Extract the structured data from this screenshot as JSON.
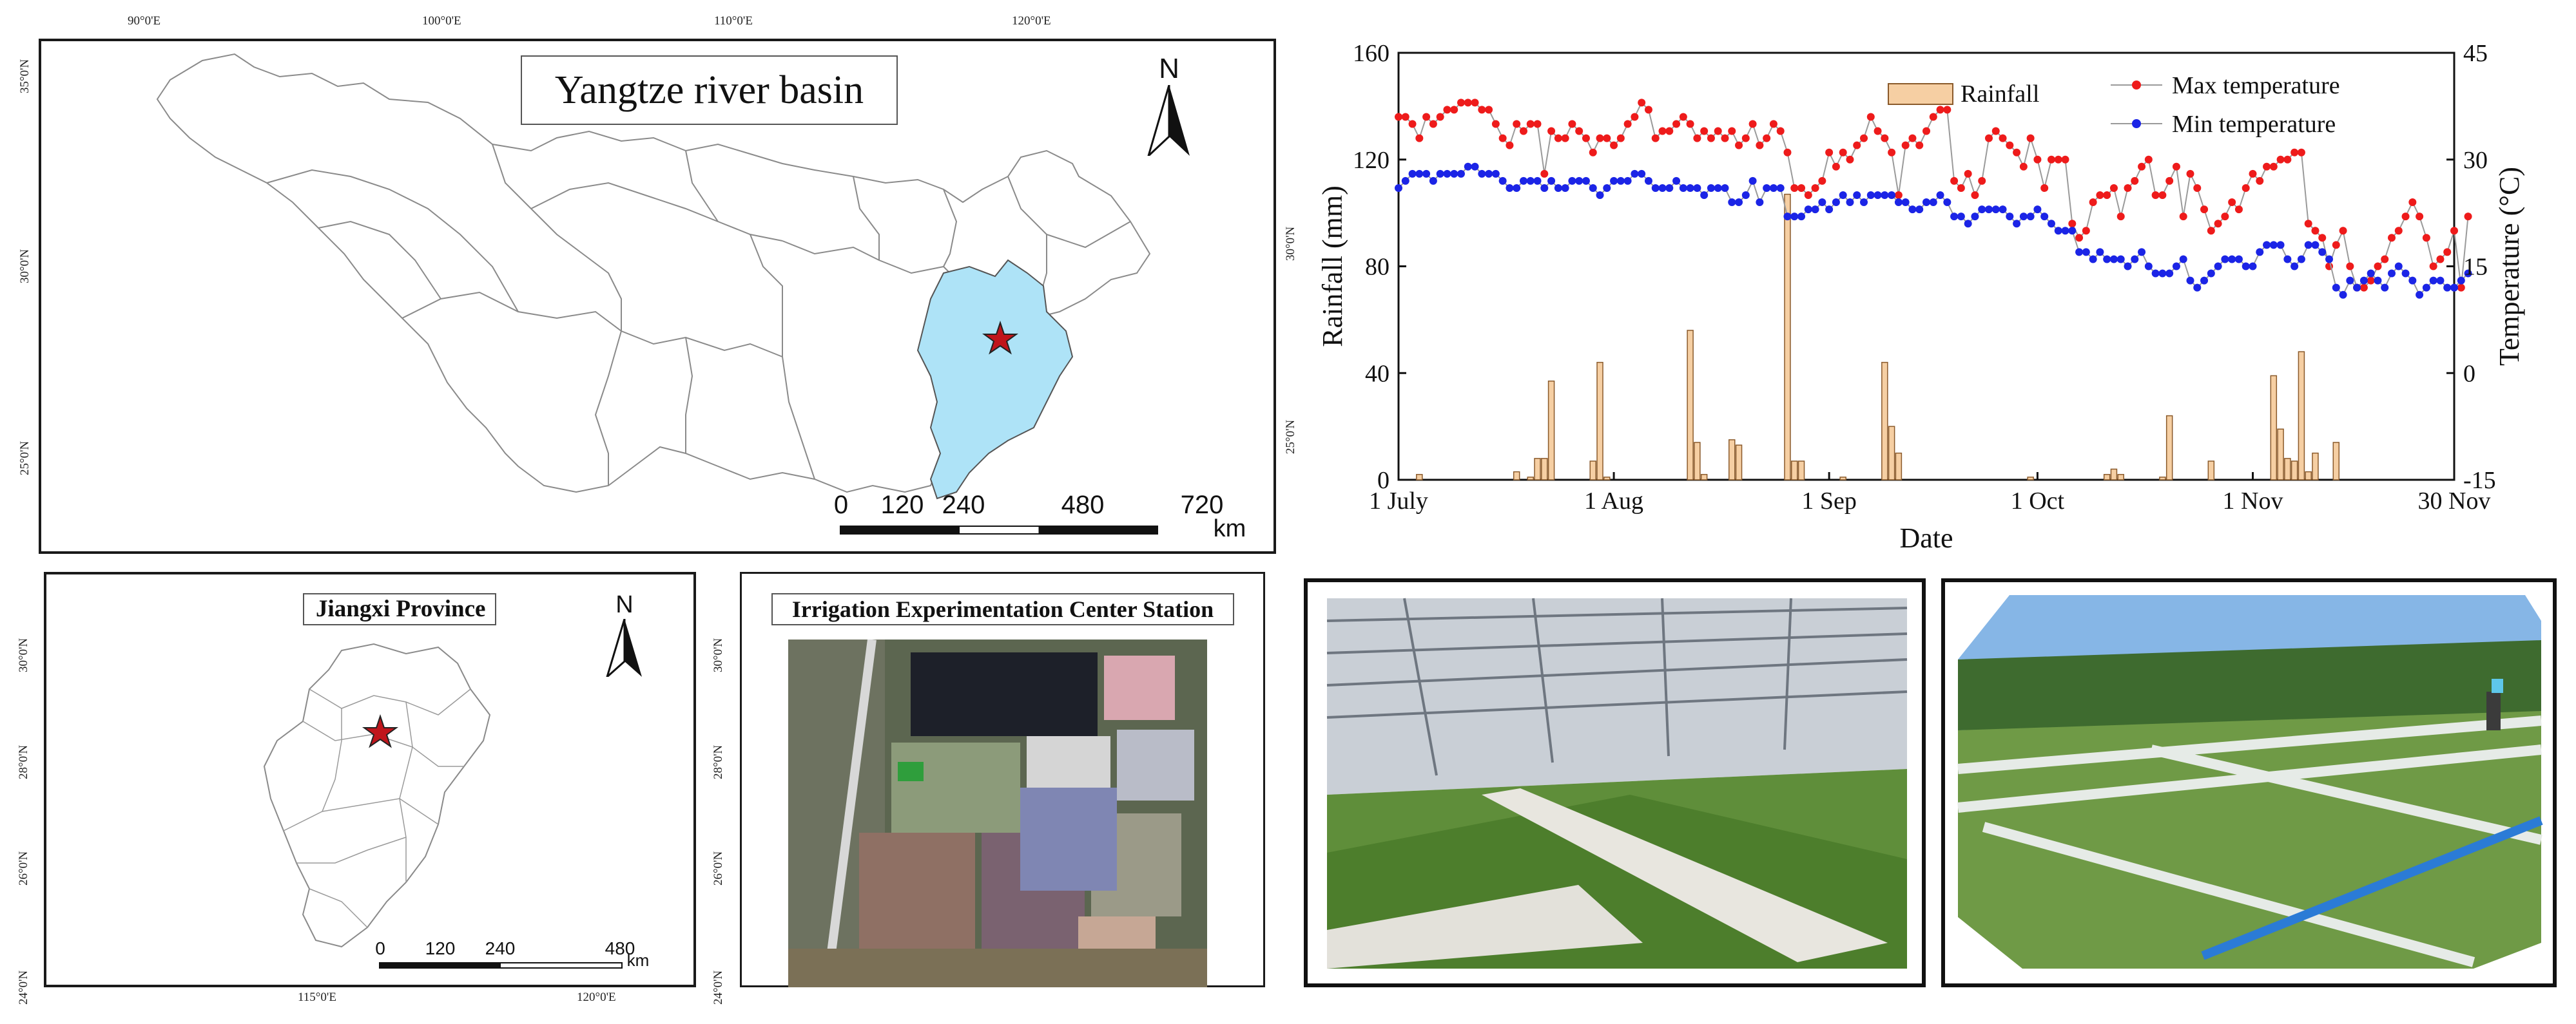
{
  "basin_map": {
    "title": "Yangtze river basin",
    "north": "N",
    "top_lon": [
      "90°0'E",
      "100°0'E",
      "110°0'E",
      "120°0'E"
    ],
    "left_lat": [
      "35°0'N",
      "30°0'N",
      "25°0'N"
    ],
    "right_lat": [
      "30°0'N",
      "25°0'N"
    ],
    "scale_values": [
      "0",
      "120",
      "240",
      "480",
      "720"
    ],
    "scale_unit": "km",
    "colors": {
      "highlight": "#aee3f7",
      "star": "#c0151b",
      "outline": "#8a8a8a"
    }
  },
  "jiangxi_map": {
    "title": "Jiangxi Province",
    "north": "N",
    "left_lat": [
      "30°0'N",
      "28°0'N",
      "26°0'N",
      "24°0'N"
    ],
    "bottom_lon": [
      "115°0'E",
      "120°0'E"
    ],
    "scale_values": [
      "0",
      "120",
      "240",
      "480"
    ],
    "scale_unit": "km"
  },
  "station_map": {
    "title": "Irrigation Experimentation Center Station",
    "left_lat": [
      "30°0'N",
      "28°0'N",
      "26°0'N",
      "24°0'N"
    ]
  },
  "chart_data": {
    "type": "bar+line",
    "xlabel": "Date",
    "ylabel_left": "Rainfall (mm)",
    "ylabel_right": "Temperature (°C)",
    "x_ticks": [
      "1 July",
      "1 Aug",
      "1 Sep",
      "1 Oct",
      "1 Nov",
      "30 Nov"
    ],
    "x_tick_days": [
      0,
      31,
      62,
      92,
      123,
      152
    ],
    "y_left_ticks": [
      "0",
      "40",
      "80",
      "120",
      "160"
    ],
    "y_right_ticks": [
      "-15",
      "0",
      "15",
      "30",
      "45"
    ],
    "y_left_range": [
      0,
      160
    ],
    "y_right_range": [
      -15,
      45
    ],
    "x_range_days": [
      0,
      152
    ],
    "legend": [
      "Rainfall",
      "Max temperature",
      "Min temperature"
    ],
    "colors": {
      "rainfall_fill": "#f6cfa3",
      "rainfall_edge": "#8a5a2b",
      "max": "#ee1b1b",
      "min": "#1b24e6",
      "line": "#9a9a9a"
    },
    "rainfall": [
      {
        "day": 3,
        "mm": 2
      },
      {
        "day": 17,
        "mm": 3
      },
      {
        "day": 19,
        "mm": 1
      },
      {
        "day": 20,
        "mm": 8
      },
      {
        "day": 21,
        "mm": 8
      },
      {
        "day": 22,
        "mm": 37
      },
      {
        "day": 28,
        "mm": 7
      },
      {
        "day": 29,
        "mm": 44
      },
      {
        "day": 30,
        "mm": 1
      },
      {
        "day": 42,
        "mm": 56
      },
      {
        "day": 43,
        "mm": 14
      },
      {
        "day": 44,
        "mm": 2
      },
      {
        "day": 48,
        "mm": 15
      },
      {
        "day": 49,
        "mm": 13
      },
      {
        "day": 56,
        "mm": 107
      },
      {
        "day": 57,
        "mm": 7
      },
      {
        "day": 58,
        "mm": 7
      },
      {
        "day": 64,
        "mm": 1
      },
      {
        "day": 70,
        "mm": 44
      },
      {
        "day": 71,
        "mm": 20
      },
      {
        "day": 72,
        "mm": 10
      },
      {
        "day": 91,
        "mm": 1
      },
      {
        "day": 102,
        "mm": 2
      },
      {
        "day": 103,
        "mm": 4
      },
      {
        "day": 104,
        "mm": 2
      },
      {
        "day": 110,
        "mm": 1
      },
      {
        "day": 111,
        "mm": 24
      },
      {
        "day": 117,
        "mm": 7
      },
      {
        "day": 126,
        "mm": 39
      },
      {
        "day": 127,
        "mm": 19
      },
      {
        "day": 128,
        "mm": 8
      },
      {
        "day": 129,
        "mm": 7
      },
      {
        "day": 130,
        "mm": 48
      },
      {
        "day": 131,
        "mm": 3
      },
      {
        "day": 132,
        "mm": 10
      },
      {
        "day": 135,
        "mm": 14
      }
    ],
    "max_temperature": [
      36,
      36,
      35,
      33,
      36,
      35,
      36,
      37,
      37,
      38,
      38,
      38,
      37,
      37,
      35,
      33,
      32,
      35,
      34,
      35,
      35,
      28,
      34,
      33,
      33,
      35,
      34,
      33,
      31,
      33,
      33,
      32,
      33,
      35,
      36,
      38,
      37,
      33,
      34,
      34,
      35,
      36,
      35,
      33,
      34,
      33,
      34,
      33,
      34,
      32,
      33,
      35,
      32,
      33,
      35,
      34,
      31,
      26,
      26,
      25,
      26,
      27,
      31,
      29,
      31,
      30,
      32,
      33,
      36,
      34,
      33,
      31,
      25,
      32,
      33,
      32,
      34,
      36,
      37,
      37,
      27,
      26,
      28,
      25,
      27,
      33,
      34,
      33,
      32,
      31,
      29,
      33,
      30,
      26,
      30,
      30,
      30,
      21,
      19,
      20,
      24,
      25,
      25,
      26,
      22,
      26,
      27,
      29,
      30,
      25,
      25,
      27,
      29,
      22,
      28,
      26,
      23,
      20,
      21,
      22,
      24,
      23,
      26,
      28,
      27,
      29,
      29,
      30,
      30,
      31,
      31,
      21,
      20,
      19,
      15,
      18,
      20,
      15,
      12,
      12,
      13,
      15,
      16,
      19,
      20,
      22,
      24,
      22,
      19,
      15,
      16,
      17,
      20,
      12,
      22
    ],
    "min_temperature": [
      26,
      27,
      28,
      28,
      28,
      27,
      28,
      28,
      28,
      28,
      29,
      29,
      28,
      28,
      28,
      27,
      26,
      26,
      27,
      27,
      27,
      26,
      27,
      26,
      26,
      27,
      27,
      27,
      26,
      25,
      26,
      27,
      27,
      27,
      28,
      28,
      27,
      26,
      26,
      26,
      27,
      26,
      26,
      26,
      25,
      26,
      26,
      26,
      24,
      24,
      25,
      27,
      24,
      26,
      26,
      26,
      22,
      22,
      22,
      23,
      23,
      24,
      23,
      24,
      25,
      24,
      25,
      24,
      25,
      25,
      25,
      25,
      24,
      24,
      23,
      23,
      24,
      24,
      25,
      24,
      22,
      22,
      21,
      22,
      23,
      23,
      23,
      23,
      22,
      21,
      22,
      22,
      23,
      22,
      21,
      20,
      20,
      20,
      17,
      17,
      16,
      17,
      16,
      16,
      16,
      15,
      16,
      17,
      15,
      14,
      14,
      14,
      15,
      16,
      13,
      12,
      13,
      14,
      15,
      16,
      16,
      16,
      15,
      15,
      17,
      18,
      18,
      18,
      16,
      15,
      16,
      18,
      18,
      17,
      16,
      12,
      11,
      13,
      12,
      13,
      14,
      13,
      12,
      14,
      15,
      14,
      13,
      11,
      12,
      13,
      13,
      12,
      12,
      13,
      14
    ]
  },
  "photos": [
    {
      "label": "greenhouse-rice-photo"
    },
    {
      "label": "field-plots-photo"
    }
  ]
}
